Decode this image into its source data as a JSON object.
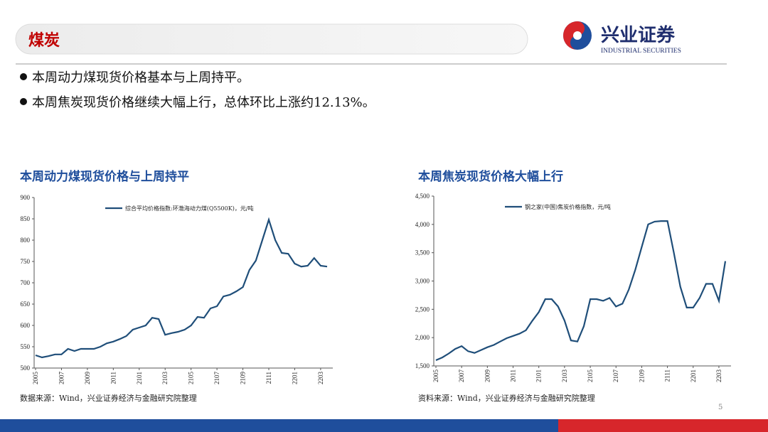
{
  "header": {
    "title": "煤炭",
    "logo_cn": "兴业证券",
    "logo_en": "INDUSTRIAL SECURITIES"
  },
  "bullets": [
    "本周动力煤现货价格基本与上周持平。",
    "本周焦炭现货价格继续大幅上行，总体环比上涨约12.13%。"
  ],
  "page_number": "5",
  "chart_data": [
    {
      "type": "line",
      "title": "本周动力煤现货价格与上周持平",
      "source": "数据来源：Wind，兴业证券经济与金融研究院整理",
      "categories": [
        "2005",
        null,
        null,
        null,
        "2007",
        null,
        null,
        null,
        "2009",
        null,
        null,
        null,
        "2011",
        null,
        null,
        null,
        "2101",
        null,
        null,
        null,
        "2103",
        null,
        null,
        null,
        "2105",
        null,
        null,
        null,
        "2107",
        null,
        null,
        null,
        "2109",
        null,
        null,
        null,
        "2111",
        null,
        null,
        null,
        "2201",
        null,
        null,
        null,
        "2203",
        null
      ],
      "series": [
        {
          "name": "综合平均价格指数:环渤海动力煤(Q5500K)，元/吨",
          "color": "#1f4e79",
          "values": [
            530,
            525,
            528,
            532,
            532,
            545,
            540,
            545,
            545,
            545,
            550,
            558,
            562,
            568,
            575,
            590,
            595,
            600,
            618,
            615,
            578,
            582,
            585,
            590,
            600,
            620,
            618,
            640,
            645,
            668,
            672,
            680,
            690,
            730,
            752,
            800,
            848,
            800,
            770,
            768,
            745,
            738,
            740,
            758,
            740,
            738
          ]
        }
      ],
      "ylim": [
        500,
        900
      ],
      "yticks": [
        500,
        550,
        600,
        650,
        700,
        750,
        800,
        850,
        900
      ]
    },
    {
      "type": "line",
      "title": "本周焦炭现货价格大幅上行",
      "source": "资料来源：Wind，兴业证券经济与金融研究院整理",
      "categories": [
        "2005",
        null,
        null,
        null,
        "2007",
        null,
        null,
        null,
        "2009",
        null,
        null,
        null,
        "2011",
        null,
        null,
        null,
        "2101",
        null,
        null,
        null,
        "2103",
        null,
        null,
        null,
        "2105",
        null,
        null,
        null,
        "2107",
        null,
        null,
        null,
        "2109",
        null,
        null,
        null,
        "2111",
        null,
        null,
        null,
        "2201",
        null,
        null,
        null,
        "2203",
        null
      ],
      "series": [
        {
          "name": "钢之家(中国)焦炭价格指数，元/吨",
          "color": "#1f4e79",
          "values": [
            1600,
            1650,
            1720,
            1800,
            1850,
            1760,
            1730,
            1780,
            1830,
            1870,
            1930,
            1990,
            2030,
            2070,
            2130,
            2300,
            2450,
            2680,
            2680,
            2550,
            2300,
            1950,
            1930,
            2200,
            2680,
            2680,
            2650,
            2700,
            2550,
            2600,
            2850,
            3200,
            3600,
            4000,
            4050,
            4060,
            4060,
            3500,
            2900,
            2530,
            2530,
            2700,
            2950,
            2950,
            2650,
            3350
          ]
        }
      ],
      "ylim": [
        1500,
        4500
      ],
      "yticks": [
        {
          "value": 1500,
          "label": "1,500"
        },
        {
          "value": 2000,
          "label": "2,000"
        },
        {
          "value": 2500,
          "label": "2,500"
        },
        {
          "value": 3000,
          "label": "3,000"
        },
        {
          "value": 3500,
          "label": "3,500"
        },
        {
          "value": 4000,
          "label": "4,000"
        },
        {
          "value": 4500,
          "label": "4,500"
        }
      ]
    }
  ]
}
